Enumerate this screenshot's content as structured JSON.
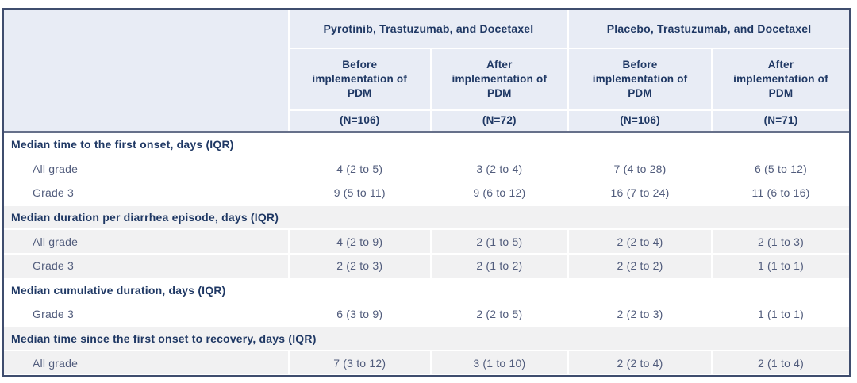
{
  "table": {
    "column_groups": [
      {
        "label": "Pyrotinib, Trastuzumab, and Docetaxel"
      },
      {
        "label": "Placebo, Trastuzumab, and Docetaxel"
      }
    ],
    "columns": [
      {
        "label": "Before implementation of PDM",
        "n": "(N=106)"
      },
      {
        "label": "After implementation of PDM",
        "n": "(N=72)"
      },
      {
        "label": "Before implementation of PDM",
        "n": "(N=106)"
      },
      {
        "label": "After implementation of PDM",
        "n": "(N=71)"
      }
    ],
    "sections": [
      {
        "header": "Median time to the first onset, days (IQR)",
        "rows": [
          {
            "label": "All grade",
            "values": [
              "4 (2 to 5)",
              "3 (2 to 4)",
              "7 (4 to 28)",
              "6 (5 to 12)"
            ]
          },
          {
            "label": "Grade 3",
            "values": [
              "9 (5 to 11)",
              "9 (6 to 12)",
              "16 (7 to 24)",
              "11 (6 to 16)"
            ]
          }
        ]
      },
      {
        "header": "Median duration per diarrhea episode, days (IQR)",
        "rows": [
          {
            "label": "All grade",
            "values": [
              "4 (2 to 9)",
              "2 (1 to 5)",
              "2 (2 to 4)",
              "2 (1 to 3)"
            ]
          },
          {
            "label": "Grade 3",
            "values": [
              "2 (2 to 3)",
              "2 (1 to 2)",
              "2 (2 to 2)",
              "1 (1 to 1)"
            ]
          }
        ]
      },
      {
        "header": "Median cumulative duration, days (IQR)",
        "rows": [
          {
            "label": "Grade 3",
            "values": [
              "6 (3 to 9)",
              "2 (2 to 5)",
              "2 (2 to 3)",
              "1 (1 to 1)"
            ]
          }
        ]
      },
      {
        "header": "Median time since the first onset to recovery, days (IQR)",
        "rows": [
          {
            "label": "All grade",
            "values": [
              "7 (3 to 12)",
              "3 (1 to 10)",
              "2 (2 to 4)",
              "2 (1 to 4)"
            ]
          }
        ]
      }
    ],
    "colors": {
      "header_bg": "#e8ecf5",
      "navy_text": "#1f3864",
      "body_text": "#515c7c",
      "stripe": "#f1f1f2",
      "frame": "#3f4d6e",
      "header_rule": "#66708a"
    }
  }
}
